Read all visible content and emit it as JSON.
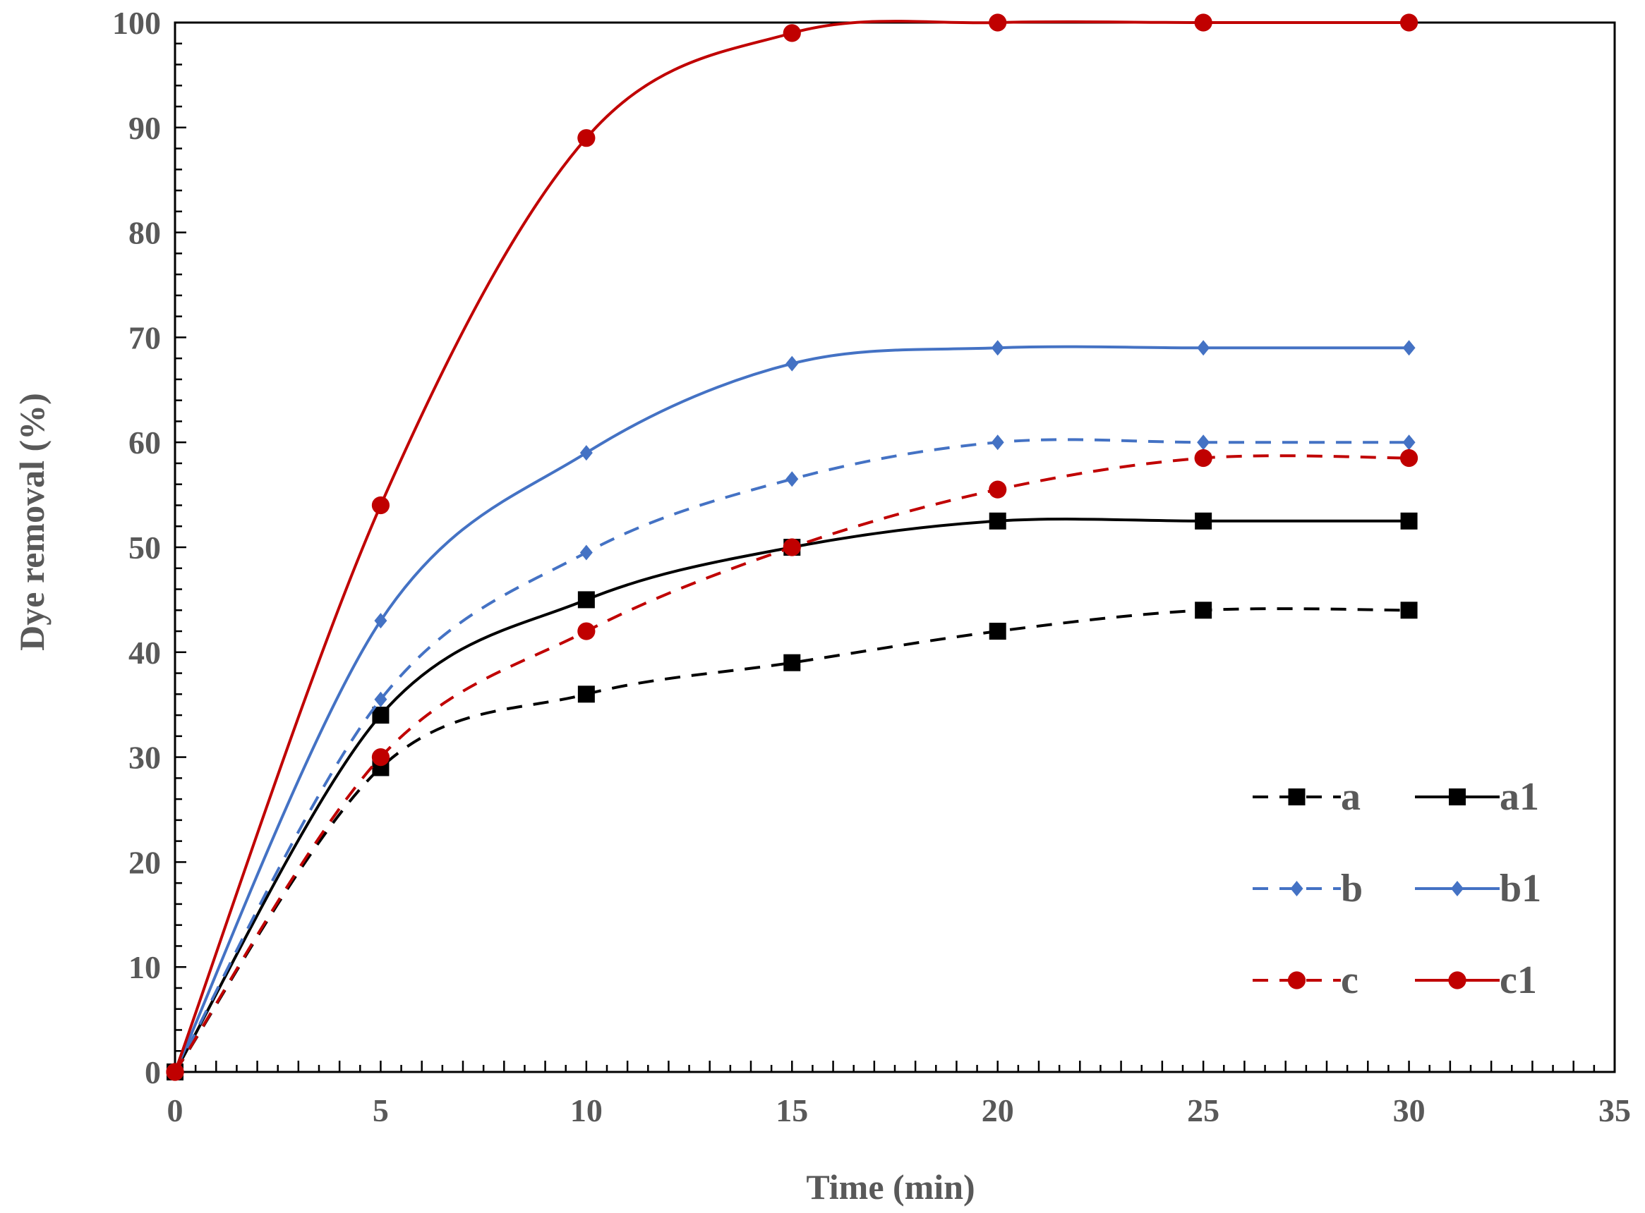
{
  "chart_data": {
    "type": "line",
    "title": "",
    "xlabel": "Time (min)",
    "ylabel": "Dye removal (%)",
    "xlim": [
      0,
      35
    ],
    "ylim": [
      0,
      100
    ],
    "xticks": [
      "0",
      "5",
      "10",
      "15",
      "20",
      "25",
      "30",
      "35"
    ],
    "yticks": [
      "0",
      "10",
      "20",
      "30",
      "40",
      "50",
      "60",
      "70",
      "80",
      "90",
      "100"
    ],
    "grid": false,
    "legend_position": "bottom-right",
    "x": [
      0,
      5,
      10,
      15,
      20,
      25,
      30
    ],
    "series": [
      {
        "name": "a",
        "values": [
          0,
          29,
          36,
          39,
          42,
          44,
          44
        ],
        "color": "#000000",
        "dashed": true,
        "marker": "square"
      },
      {
        "name": "a1",
        "values": [
          0,
          34,
          45,
          50,
          52.5,
          52.5,
          52.5
        ],
        "color": "#000000",
        "dashed": false,
        "marker": "square"
      },
      {
        "name": "b",
        "values": [
          0,
          35.5,
          49.5,
          56.5,
          60,
          60,
          60
        ],
        "color": "#4472c4",
        "dashed": true,
        "marker": "diamond"
      },
      {
        "name": "b1",
        "values": [
          0,
          43,
          59,
          67.5,
          69,
          69,
          69
        ],
        "color": "#4472c4",
        "dashed": false,
        "marker": "diamond"
      },
      {
        "name": "c",
        "values": [
          0,
          30,
          42,
          50,
          55.5,
          58.5,
          58.5
        ],
        "color": "#c00000",
        "dashed": true,
        "marker": "circle"
      },
      {
        "name": "c1",
        "values": [
          0,
          54,
          89,
          99,
          100,
          100,
          100
        ],
        "color": "#c00000",
        "dashed": false,
        "marker": "circle"
      }
    ]
  }
}
